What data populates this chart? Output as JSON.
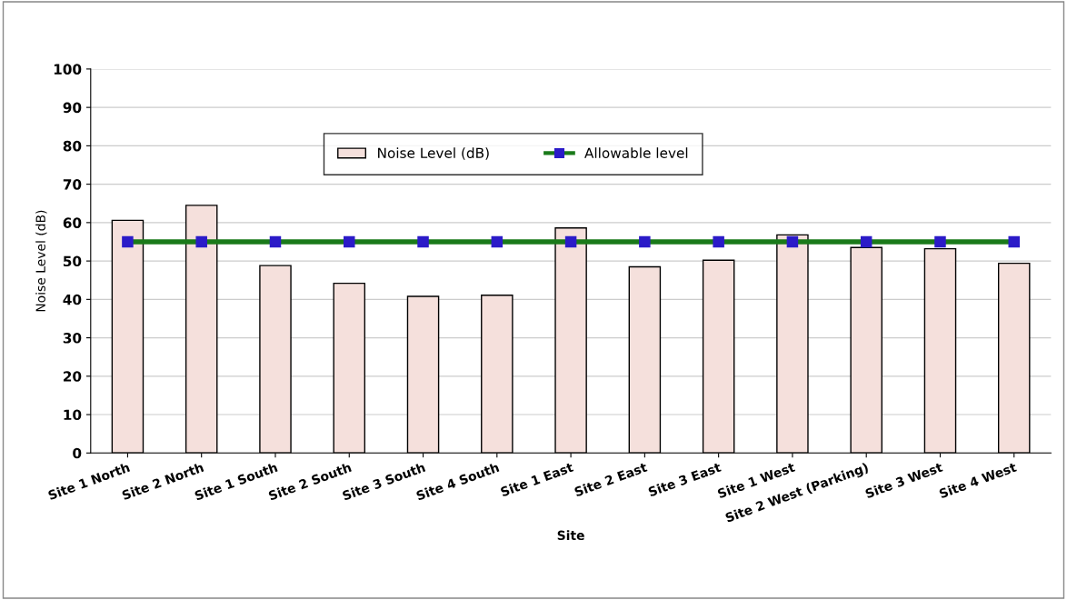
{
  "chart_data": {
    "type": "bar",
    "xlabel": "Site",
    "ylabel": "Noise Level (dB)",
    "categories": [
      "Site 1 North",
      "Site 2 North",
      "Site 1 South",
      "Site 2 South",
      "Site 3 South",
      "Site 4 South",
      "Site 1 East",
      "Site 2 East",
      "Site 3 East",
      "Site 1 West",
      "Site 2 West (Parking)",
      "Site 3 West",
      "Site 4 West"
    ],
    "series": [
      {
        "name": "Noise Level (dB)",
        "color": "#f5e0dc",
        "values": [
          60.6,
          64.5,
          48.8,
          44.2,
          40.8,
          41.1,
          58.6,
          48.5,
          50.2,
          56.8,
          53.5,
          53.2,
          49.4
        ]
      },
      {
        "name": "Allowable level",
        "type": "line",
        "color": "#1a7a1a",
        "marker": "square",
        "values": [
          55,
          55,
          55,
          55,
          55,
          55,
          55,
          55,
          55,
          55,
          55,
          55,
          55
        ]
      }
    ],
    "ylim": [
      0,
      100
    ],
    "yticks": [
      0,
      10,
      20,
      30,
      40,
      50,
      60,
      70,
      80,
      90,
      100
    ],
    "grid": "y",
    "legend": "top"
  }
}
